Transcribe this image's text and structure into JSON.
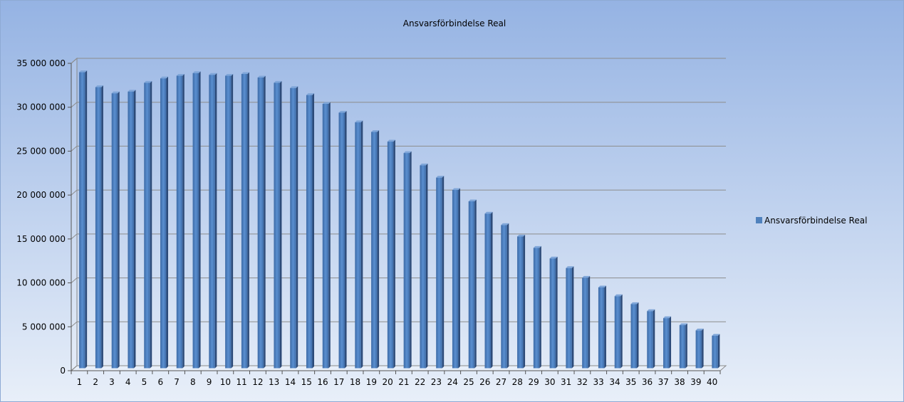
{
  "chart_data": {
    "type": "bar",
    "title": "Ansvarsförbindelse Real",
    "xlabel": "",
    "ylabel": "",
    "ylim": [
      0,
      35000000
    ],
    "yticks": [
      0,
      5000000,
      10000000,
      15000000,
      20000000,
      25000000,
      30000000,
      35000000
    ],
    "ytick_labels": [
      "0",
      "5 000 000",
      "10 000 000",
      "15 000 000",
      "20 000 000",
      "25 000 000",
      "30 000 000",
      "35 000 000"
    ],
    "grid": true,
    "legend_position": "right",
    "categories": [
      "1",
      "2",
      "3",
      "4",
      "5",
      "6",
      "7",
      "8",
      "9",
      "10",
      "11",
      "12",
      "13",
      "14",
      "15",
      "16",
      "17",
      "18",
      "19",
      "20",
      "21",
      "22",
      "23",
      "24",
      "25",
      "26",
      "27",
      "28",
      "29",
      "30",
      "31",
      "32",
      "33",
      "34",
      "35",
      "36",
      "37",
      "38",
      "39",
      "40"
    ],
    "series": [
      {
        "name": "Ansvarsförbindelse Real",
        "color": "#4F81BD",
        "values": [
          33700000,
          32000000,
          31300000,
          31500000,
          32500000,
          33000000,
          33300000,
          33600000,
          33400000,
          33300000,
          33500000,
          33100000,
          32500000,
          31900000,
          31100000,
          30100000,
          29100000,
          28000000,
          26900000,
          25800000,
          24500000,
          23100000,
          21700000,
          20300000,
          19000000,
          17600000,
          16300000,
          15000000,
          13700000,
          12500000,
          11400000,
          10300000,
          9200000,
          8200000,
          7300000,
          6500000,
          5700000,
          4900000,
          4300000,
          3700000
        ]
      }
    ]
  }
}
